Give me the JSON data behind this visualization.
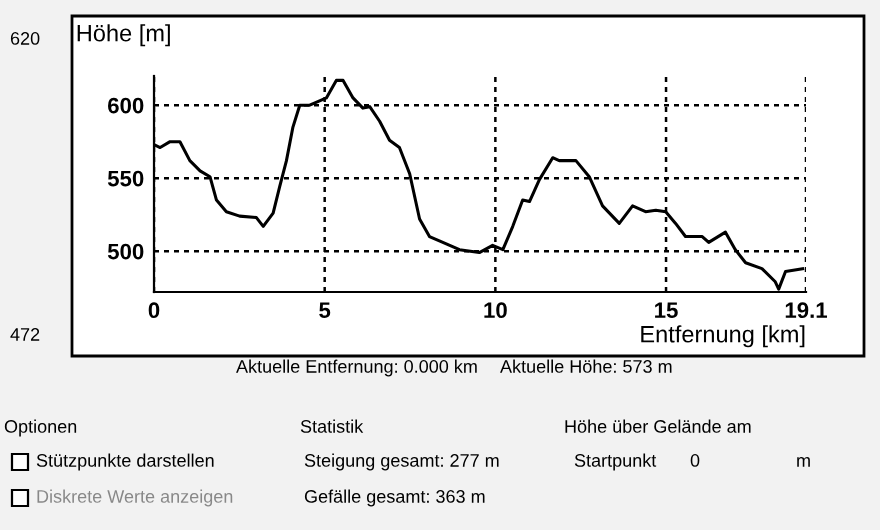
{
  "chart_data": {
    "type": "line",
    "xlabel": "Entfernung [km]",
    "ylabel": "Höhe [m]",
    "series": [
      {
        "color": "#000000",
        "x": [
          0,
          0.18,
          0.47,
          0.76,
          1.05,
          1.35,
          1.64,
          1.83,
          2.12,
          2.51,
          3.0,
          3.2,
          3.49,
          3.68,
          3.88,
          4.07,
          4.27,
          4.56,
          4.85,
          5.05,
          5.34,
          5.54,
          5.83,
          6.12,
          6.32,
          6.61,
          6.9,
          7.19,
          7.49,
          7.78,
          8.07,
          8.36,
          8.95,
          9.53,
          9.92,
          10.22,
          10.51,
          10.8,
          11.0,
          11.29,
          11.68,
          11.87,
          12.36,
          12.75,
          13.14,
          13.63,
          14.02,
          14.4,
          14.7,
          14.99,
          15.28,
          15.57,
          16.06,
          16.25,
          16.74,
          17.03,
          17.33,
          17.81,
          18.2,
          18.3,
          18.5,
          19.0
        ],
        "values": [
          573,
          571,
          575,
          575,
          562,
          555,
          551,
          535,
          527,
          524,
          523,
          517,
          526,
          544,
          562,
          585,
          600,
          600,
          603,
          605,
          617,
          617,
          605,
          598,
          599,
          589,
          576,
          571,
          553,
          522,
          510,
          507,
          501,
          499,
          504,
          501,
          517,
          535,
          534,
          549,
          564,
          562,
          562,
          551,
          531,
          519,
          531,
          527,
          528,
          527,
          519,
          510,
          510,
          506,
          513,
          501,
          492,
          488,
          479,
          474,
          486,
          488
        ]
      }
    ],
    "xlim": [
      0,
      19.1
    ],
    "ylim": [
      472,
      620
    ],
    "xticks": [
      0,
      5,
      10,
      15,
      19.1
    ],
    "yticks": [
      500,
      550,
      600
    ],
    "grid": true,
    "line_style": "solid",
    "marker": "none",
    "annotations": [
      "620",
      "472",
      "Aktuelle Entfernung: 0.000 km",
      "Aktuelle Höhe: 573 m",
      "Optionen",
      "Stützpunkte darstellen",
      "Diskrete Werte anzeigen",
      "Statistik",
      "Steigung gesamt: 277 m",
      "Gefälle gesamt: 363 m",
      "Höhe über Gelände am",
      "Startpunkt",
      "0",
      "m"
    ]
  }
}
